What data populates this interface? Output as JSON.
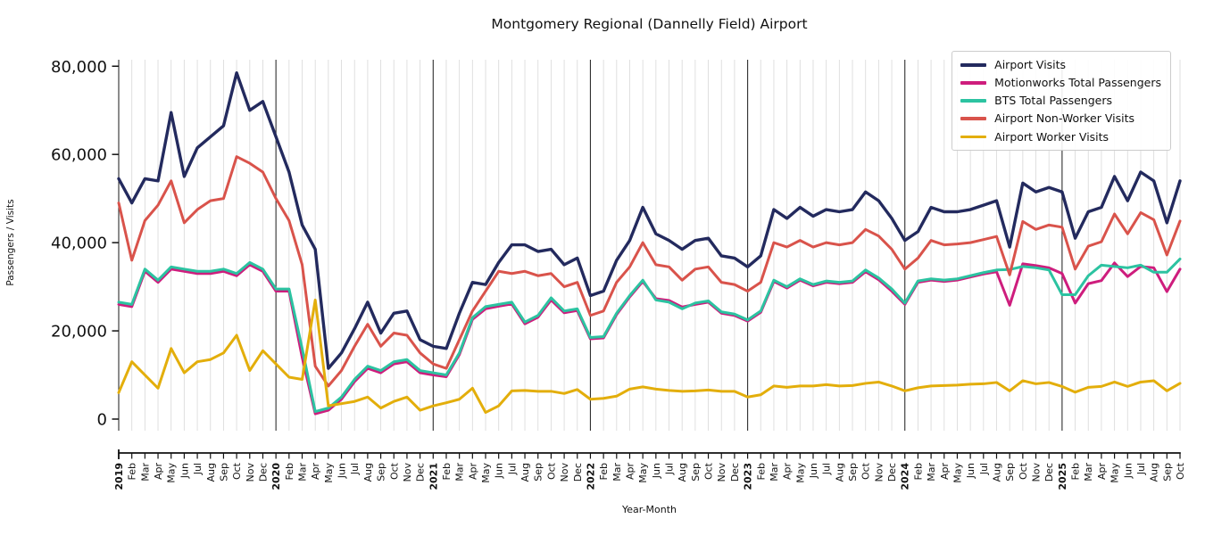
{
  "chart_data": {
    "type": "line",
    "title": "Montgomery Regional (Dannelly Field) Airport",
    "xlabel": "Year-Month",
    "ylabel": "Passengers / Visits",
    "ylim": [
      0,
      80000
    ],
    "yticks": [
      0,
      20000,
      40000,
      60000,
      80000
    ],
    "grid": "vertical monthly gridlines, darker line at each January",
    "legend_position": "upper right",
    "x_labels": [
      "2019",
      "Feb",
      "Mar",
      "Apr",
      "May",
      "Jun",
      "Jul",
      "Aug",
      "Sep",
      "Oct",
      "Nov",
      "Dec",
      "2020",
      "Feb",
      "Mar",
      "Apr",
      "May",
      "Jun",
      "Jul",
      "Aug",
      "Sep",
      "Oct",
      "Nov",
      "Dec",
      "2021",
      "Feb",
      "Mar",
      "Apr",
      "May",
      "Jun",
      "Jul",
      "Aug",
      "Sep",
      "Oct",
      "Nov",
      "Dec",
      "2022",
      "Feb",
      "Mar",
      "Apr",
      "May",
      "Jun",
      "Jul",
      "Aug",
      "Sep",
      "Oct",
      "Nov",
      "Dec",
      "2023",
      "Feb",
      "Mar",
      "Apr",
      "May",
      "Jun",
      "Jul",
      "Aug",
      "Sep",
      "Oct",
      "Nov",
      "Dec",
      "2024",
      "Feb",
      "Mar",
      "Apr",
      "May",
      "Jun",
      "Jul",
      "Aug",
      "Sep",
      "Oct",
      "Nov",
      "Dec",
      "2025",
      "Feb",
      "Mar",
      "Apr",
      "May",
      "Jun",
      "Jul",
      "Aug",
      "Sep",
      "Oct"
    ],
    "series": [
      {
        "name": "Airport Visits",
        "color": "#232a5e",
        "values": [
          54500,
          49000,
          54500,
          54000,
          69500,
          55000,
          61500,
          64000,
          66500,
          78500,
          70000,
          72000,
          64000,
          56000,
          44000,
          38500,
          11500,
          15000,
          20500,
          26500,
          19500,
          24000,
          24500,
          18000,
          16500,
          16000,
          24000,
          31000,
          30500,
          35500,
          39500,
          39500,
          38000,
          38500,
          35000,
          36500,
          28000,
          29000,
          36000,
          40500,
          48000,
          42000,
          40500,
          38500,
          40500,
          41000,
          37000,
          36500,
          34500,
          37000,
          47500,
          45500,
          48000,
          46000,
          47500,
          47000,
          47500,
          51500,
          49500,
          45500,
          40500,
          42500,
          48000,
          47000,
          47000,
          47500,
          48500,
          49500,
          39000,
          53500,
          51500,
          52500,
          51500,
          41000,
          47000,
          48000,
          55000,
          49500,
          56000,
          54000,
          44500,
          54000
        ]
      },
      {
        "name": "Motionworks Total Passengers",
        "color": "#ce1d7d",
        "values": [
          26000,
          25500,
          33500,
          31000,
          34000,
          33500,
          33000,
          33000,
          33500,
          32500,
          35000,
          33500,
          29000,
          29000,
          14000,
          1200,
          2000,
          4500,
          8500,
          11500,
          10500,
          12500,
          13000,
          10500,
          10000,
          9600,
          14600,
          22600,
          25000,
          25600,
          26100,
          21600,
          23100,
          27000,
          24100,
          24600,
          18200,
          18400,
          23700,
          27700,
          31200,
          27300,
          26900,
          25400,
          26000,
          26500,
          24000,
          23500,
          22200,
          24200,
          31200,
          29700,
          31500,
          30200,
          31000,
          30700,
          31000,
          33400,
          31600,
          29000,
          26000,
          31000,
          31500,
          31200,
          31500,
          32200,
          32900,
          33400,
          25800,
          35200,
          34800,
          34300,
          33000,
          26300,
          30700,
          31400,
          35400,
          32300,
          34600,
          34300,
          28900,
          34000
        ]
      },
      {
        "name": "BTS Total Passengers",
        "color": "#2cc3a1",
        "values": [
          26500,
          26000,
          34000,
          31500,
          34500,
          34000,
          33500,
          33500,
          34000,
          33000,
          35500,
          34000,
          29500,
          29500,
          16000,
          1700,
          2500,
          5000,
          9000,
          12000,
          11000,
          13000,
          13500,
          11000,
          10500,
          10000,
          15000,
          23000,
          25500,
          26000,
          26500,
          22000,
          23500,
          27500,
          24500,
          25000,
          18500,
          18700,
          24000,
          28000,
          31500,
          27000,
          26500,
          25000,
          26300,
          26800,
          24300,
          23800,
          22500,
          24500,
          31500,
          30000,
          31800,
          30500,
          31300,
          31000,
          31300,
          33800,
          32000,
          29500,
          26300,
          31300,
          31800,
          31500,
          31800,
          32500,
          33200,
          33800,
          33900,
          34600,
          34300,
          33800,
          28200,
          28200,
          32500,
          34900,
          34600,
          34300,
          34900,
          33300,
          33300,
          36300
        ]
      },
      {
        "name": "Airport Non-Worker Visits",
        "color": "#d9534b",
        "values": [
          49000,
          36000,
          45000,
          48500,
          54000,
          44500,
          47500,
          49500,
          50000,
          59500,
          58000,
          56000,
          50000,
          45000,
          35000,
          12000,
          7500,
          11000,
          16500,
          21500,
          16500,
          19500,
          19000,
          15000,
          12500,
          11500,
          18000,
          24500,
          29000,
          33500,
          33000,
          33500,
          32500,
          33000,
          30000,
          31000,
          23500,
          24500,
          31000,
          34500,
          40000,
          35000,
          34500,
          31500,
          34000,
          34500,
          31000,
          30500,
          29000,
          31000,
          40000,
          39000,
          40500,
          39000,
          40000,
          39500,
          40000,
          43000,
          41500,
          38500,
          34000,
          36500,
          40500,
          39500,
          39700,
          40000,
          40700,
          41400,
          32700,
          44800,
          43000,
          44000,
          43500,
          34000,
          39200,
          40200,
          46500,
          42000,
          46800,
          45200,
          37200,
          44900
        ]
      },
      {
        "name": "Airport Worker Visits",
        "color": "#e3ae0b",
        "values": [
          6000,
          13000,
          10000,
          7000,
          16000,
          10500,
          13000,
          13500,
          15000,
          19000,
          11000,
          15500,
          12500,
          9500,
          9000,
          27000,
          3000,
          3500,
          4000,
          5000,
          2500,
          4000,
          5000,
          2000,
          3000,
          3700,
          4500,
          7000,
          1500,
          3000,
          6400,
          6500,
          6300,
          6300,
          5800,
          6700,
          4500,
          4700,
          5200,
          6800,
          7300,
          6800,
          6500,
          6300,
          6400,
          6600,
          6300,
          6300,
          5000,
          5500,
          7500,
          7200,
          7500,
          7500,
          7800,
          7500,
          7600,
          8100,
          8400,
          7500,
          6400,
          7100,
          7500,
          7600,
          7700,
          7900,
          8000,
          8300,
          6400,
          8700,
          8000,
          8300,
          7400,
          6100,
          7200,
          7400,
          8400,
          7400,
          8400,
          8700,
          6400,
          8100
        ]
      }
    ]
  }
}
